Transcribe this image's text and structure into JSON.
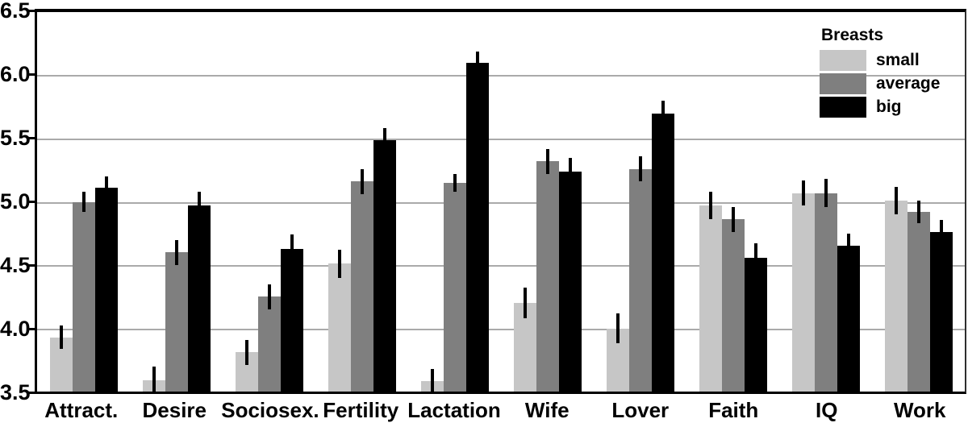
{
  "chart_data": {
    "type": "bar",
    "title": "",
    "xlabel": "",
    "ylabel": "",
    "grid": true,
    "error_bars": true,
    "legend_title": "Breasts",
    "legend_position": "top-right",
    "y_axis": {
      "min": 3.5,
      "max": 6.5,
      "step": 0.5,
      "tick_labels": [
        "6.5",
        "6.0",
        "5.5",
        "5.0",
        "4.5",
        "4.0",
        "3.5"
      ]
    },
    "categories": [
      "Attract.",
      "Desire",
      "Sociosex.",
      "Fertility",
      "Lactation",
      "Wife",
      "Lover",
      "Faith",
      "IQ",
      "Work"
    ],
    "series": [
      {
        "name": "small",
        "color": "#c6c6c6",
        "values": [
          3.93,
          3.59,
          3.81,
          4.51,
          3.58,
          4.2,
          4.0,
          4.97,
          5.07,
          5.01
        ],
        "errors": [
          0.09,
          0.11,
          0.1,
          0.11,
          0.1,
          0.12,
          0.12,
          0.11,
          0.1,
          0.11
        ]
      },
      {
        "name": "average",
        "color": "#7f7f7f",
        "values": [
          5.0,
          4.6,
          4.25,
          5.16,
          5.15,
          5.32,
          5.26,
          4.86,
          5.07,
          4.92
        ],
        "errors": [
          0.08,
          0.1,
          0.1,
          0.1,
          0.07,
          0.1,
          0.1,
          0.1,
          0.11,
          0.09
        ]
      },
      {
        "name": "big",
        "color": "#000000",
        "values": [
          5.11,
          4.97,
          4.63,
          5.49,
          6.1,
          5.24,
          5.7,
          4.56,
          4.65,
          4.76
        ],
        "errors": [
          0.09,
          0.11,
          0.11,
          0.09,
          0.09,
          0.11,
          0.1,
          0.11,
          0.1,
          0.1
        ]
      }
    ]
  },
  "colors": {
    "gridline": "#aaaaaa",
    "axis": "#000000",
    "text": "#000000",
    "background": "#ffffff"
  }
}
